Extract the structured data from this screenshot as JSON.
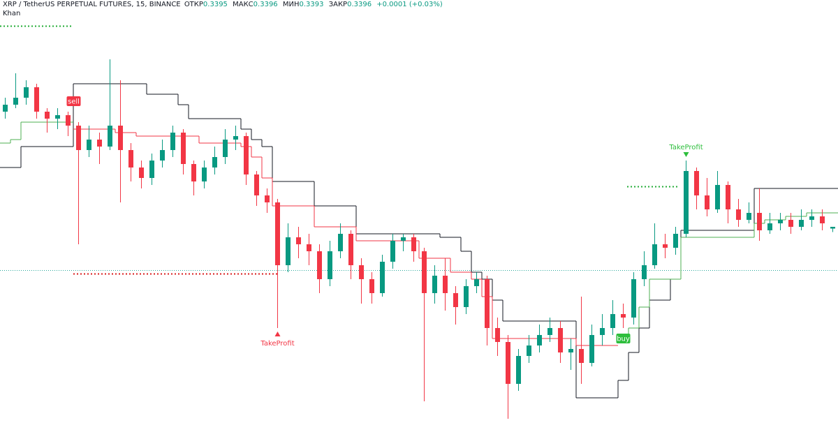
{
  "chart_data": {
    "type": "candlestick",
    "title": "XRP / TetherUS PERPETUAL FUTURES, 15, BINANCE",
    "ohlc_labels": [
      "ОТКР",
      "МАКС",
      "МИН",
      "ЗАКР"
    ],
    "ohlc_values": [
      "0.3395",
      "0.3396",
      "0.3393",
      "0.3396"
    ],
    "change": "+0.0001 (+0.03%)",
    "indicator": "Khan",
    "up_color": "#089981",
    "down_color": "#f23645",
    "open": [
      0.3462,
      0.3466,
      0.347,
      0.3476,
      0.3462,
      0.3458,
      0.346,
      0.3454,
      0.344,
      0.3446,
      0.3442,
      0.3454,
      0.344,
      0.343,
      0.3424,
      0.3434,
      0.344,
      0.345,
      0.3432,
      0.3422,
      0.343,
      0.3436,
      0.3446,
      0.3448,
      0.3426,
      0.3414,
      0.341,
      0.3374,
      0.339,
      0.3386,
      0.3382,
      0.3366,
      0.3382,
      0.3392,
      0.3374,
      0.3366,
      0.3358,
      0.3376,
      0.3388,
      0.339,
      0.3382,
      0.3358,
      0.3368,
      0.3358,
      0.335,
      0.3362,
      0.3366,
      0.3338,
      0.333,
      0.3306,
      0.3322,
      0.3328,
      0.3334,
      0.3338,
      0.3324,
      0.3326,
      0.3318,
      0.3334,
      0.3338,
      0.3346,
      0.3344,
      0.3366,
      0.3374,
      0.3386,
      0.3384,
      0.3392,
      0.3428,
      0.3414,
      0.3406,
      0.342,
      0.3406,
      0.34,
      0.3404,
      0.3394,
      0.3398,
      0.34,
      0.3396,
      0.34,
      0.3402,
      0.3395
    ],
    "high": [
      0.347,
      0.3484,
      0.348,
      0.3478,
      0.3464,
      0.3464,
      0.3462,
      0.3456,
      0.3454,
      0.345,
      0.3492,
      0.348,
      0.3444,
      0.3434,
      0.3438,
      0.3446,
      0.3454,
      0.3452,
      0.3434,
      0.3434,
      0.3442,
      0.3452,
      0.3454,
      0.345,
      0.3428,
      0.3418,
      0.3412,
      0.3398,
      0.3396,
      0.3392,
      0.3386,
      0.3388,
      0.3398,
      0.3394,
      0.3378,
      0.337,
      0.338,
      0.3392,
      0.3392,
      0.3392,
      0.3384,
      0.3374,
      0.3378,
      0.3362,
      0.3366,
      0.337,
      0.3368,
      0.3344,
      0.3334,
      0.3326,
      0.3334,
      0.334,
      0.3344,
      0.3342,
      0.3332,
      0.3356,
      0.334,
      0.3346,
      0.3354,
      0.3352,
      0.337,
      0.3382,
      0.3398,
      0.3392,
      0.3396,
      0.3434,
      0.343,
      0.3424,
      0.3428,
      0.3422,
      0.3412,
      0.341,
      0.3418,
      0.3404,
      0.3404,
      0.3404,
      0.3406,
      0.3406,
      0.3406,
      0.3396
    ],
    "low": [
      0.3458,
      0.3464,
      0.3466,
      0.3458,
      0.345,
      0.3452,
      0.3448,
      0.3386,
      0.3436,
      0.3432,
      0.344,
      0.341,
      0.3422,
      0.3418,
      0.342,
      0.343,
      0.3436,
      0.3426,
      0.3414,
      0.3418,
      0.3426,
      0.3432,
      0.344,
      0.342,
      0.3408,
      0.3404,
      0.3338,
      0.337,
      0.3378,
      0.3374,
      0.3358,
      0.3362,
      0.3378,
      0.3366,
      0.3352,
      0.3352,
      0.3356,
      0.3372,
      0.3382,
      0.3376,
      0.3296,
      0.3352,
      0.3348,
      0.334,
      0.3346,
      0.3358,
      0.3328,
      0.3322,
      0.3286,
      0.3302,
      0.3318,
      0.3324,
      0.333,
      0.3318,
      0.3314,
      0.3306,
      0.3316,
      0.3328,
      0.3334,
      0.3338,
      0.334,
      0.3362,
      0.3372,
      0.3378,
      0.338,
      0.339,
      0.3406,
      0.3402,
      0.3404,
      0.3398,
      0.3396,
      0.3398,
      0.3388,
      0.3392,
      0.3394,
      0.3392,
      0.3394,
      0.3396,
      0.3394,
      0.3393
    ],
    "close": [
      0.3466,
      0.347,
      0.3476,
      0.3462,
      0.3458,
      0.346,
      0.3454,
      0.344,
      0.3446,
      0.3442,
      0.3454,
      0.344,
      0.343,
      0.3424,
      0.3434,
      0.344,
      0.345,
      0.3432,
      0.3422,
      0.343,
      0.3436,
      0.3446,
      0.3448,
      0.3426,
      0.3414,
      0.341,
      0.3374,
      0.339,
      0.3386,
      0.3382,
      0.3366,
      0.3382,
      0.3392,
      0.3374,
      0.3366,
      0.3358,
      0.3376,
      0.3388,
      0.339,
      0.3382,
      0.3358,
      0.3368,
      0.3358,
      0.335,
      0.3362,
      0.3366,
      0.3338,
      0.333,
      0.3306,
      0.3322,
      0.3328,
      0.3334,
      0.3338,
      0.3324,
      0.3326,
      0.3318,
      0.3334,
      0.3338,
      0.3346,
      0.3344,
      0.3366,
      0.3374,
      0.3386,
      0.3384,
      0.3392,
      0.3428,
      0.3414,
      0.3406,
      0.342,
      0.3406,
      0.34,
      0.3404,
      0.3394,
      0.3398,
      0.34,
      0.3396,
      0.34,
      0.3402,
      0.3398,
      0.3396
    ],
    "lines": [
      {
        "color": "#131722",
        "values": [
          0.343,
          0.343,
          0.3442,
          0.3442,
          0.3442,
          0.3442,
          0.3442,
          0.3478,
          0.3478,
          0.3478,
          0.3478,
          0.3478,
          0.3478,
          0.3478,
          0.3472,
          0.3472,
          0.3472,
          0.3466,
          0.3458,
          0.3458,
          0.3458,
          0.3458,
          0.3458,
          0.3452,
          0.3446,
          0.3442,
          0.3422,
          0.3422,
          0.3422,
          0.3422,
          0.3408,
          0.3408,
          0.3408,
          0.3408,
          0.3392,
          0.3392,
          0.3392,
          0.3392,
          0.3392,
          0.3392,
          0.3392,
          0.3392,
          0.339,
          0.339,
          0.3382,
          0.337,
          0.3366,
          0.3354,
          0.3342,
          0.3342,
          0.3342,
          0.3342,
          0.3342,
          0.3342,
          0.3342,
          0.3298,
          0.3298,
          0.3298,
          0.3298,
          0.3308,
          0.3324,
          0.3338,
          0.3354,
          0.3354,
          0.3366,
          0.3394,
          0.3394,
          0.3394,
          0.3394,
          0.3394,
          0.3394,
          0.3394,
          0.3418,
          0.3418,
          0.3418,
          0.3418,
          0.3418,
          0.3418,
          0.3418,
          0.3418
        ]
      },
      {
        "color": "#f23645",
        "values": [
          null,
          null,
          null,
          null,
          null,
          null,
          null,
          0.3452,
          0.3452,
          0.3452,
          0.3452,
          0.345,
          0.345,
          0.3448,
          0.3448,
          0.3448,
          0.3448,
          0.3448,
          0.3448,
          0.3444,
          0.3444,
          0.3444,
          0.3444,
          0.3442,
          0.3436,
          0.3424,
          0.3408,
          0.3408,
          0.3408,
          0.3408,
          0.3396,
          0.3396,
          0.3396,
          0.3396,
          0.3388,
          0.3388,
          0.3388,
          0.3388,
          0.3388,
          0.3388,
          0.3378,
          0.3378,
          0.3378,
          0.337,
          0.337,
          0.3366,
          0.3356,
          0.3332,
          0.3332,
          0.3332,
          0.3332,
          0.3332,
          0.3332,
          0.3332,
          0.3332,
          0.3328,
          0.3328,
          0.3328,
          0.3328,
          null,
          null,
          null,
          null,
          null,
          null,
          null,
          null,
          null,
          null,
          null,
          null,
          null,
          null,
          null,
          null,
          null,
          null,
          null,
          null,
          null
        ]
      },
      {
        "color": "#4caf50",
        "values": [
          0.3444,
          0.3446,
          0.3456,
          0.3456,
          0.3456,
          0.3456,
          0.3456,
          null,
          null,
          null,
          null,
          null,
          null,
          null,
          null,
          null,
          null,
          null,
          null,
          null,
          null,
          null,
          null,
          null,
          null,
          null,
          null,
          null,
          null,
          null,
          null,
          null,
          null,
          null,
          null,
          null,
          null,
          null,
          null,
          null,
          null,
          null,
          null,
          null,
          null,
          null,
          null,
          null,
          null,
          null,
          null,
          null,
          null,
          null,
          null,
          null,
          null,
          null,
          null,
          0.3334,
          0.3338,
          0.335,
          0.3366,
          0.3366,
          0.3366,
          0.339,
          0.339,
          0.339,
          0.339,
          0.339,
          0.339,
          0.339,
          0.3398,
          0.34,
          0.34,
          0.3402,
          0.3402,
          0.3404,
          0.3404,
          0.3404
        ]
      }
    ],
    "levels": [
      {
        "color": "#22ab34",
        "value": 0.3511
      },
      {
        "color": "#d81b1b",
        "value": 0.3369
      },
      {
        "color": "#22ab34",
        "value": 0.3419
      },
      {
        "color": "#26a69a",
        "value": 0.3371
      }
    ],
    "signals": [
      {
        "label": "sell",
        "color": "#f23645"
      },
      {
        "label": "TakeProfit",
        "color": "#f23645"
      },
      {
        "label": "buy",
        "color": "#2dbe3c"
      },
      {
        "label": "TakeProfit",
        "color": "#2dbe3c"
      }
    ]
  }
}
